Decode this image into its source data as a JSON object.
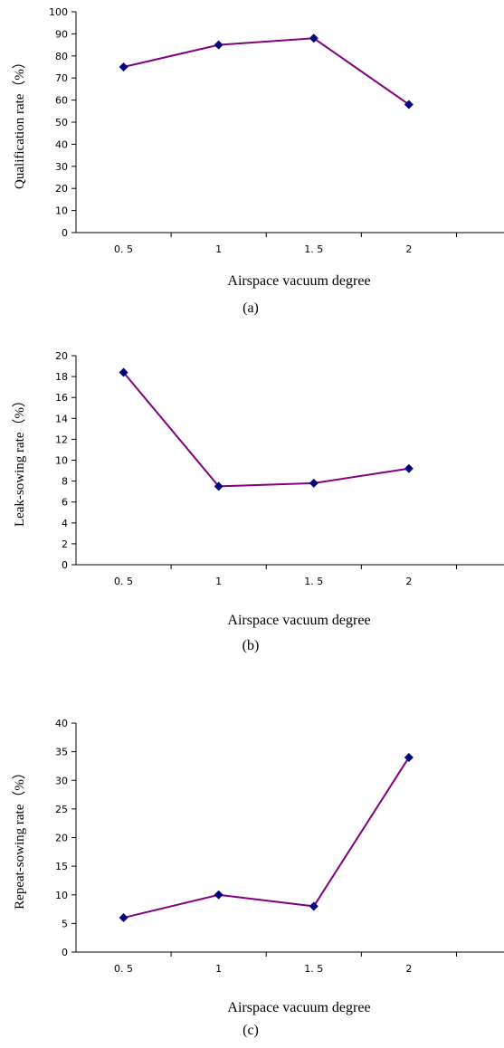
{
  "chart_data": [
    {
      "type": "line",
      "panel_label": "(a)",
      "categories": [
        "0. 5",
        "1",
        "1. 5",
        "2"
      ],
      "series": [
        {
          "values": [
            75,
            85,
            88,
            58
          ],
          "color": "#800080",
          "marker_color": "#000080"
        }
      ],
      "xlabel": "Airspace vacuum degree",
      "ylabel": "Qualification rate（%）",
      "ylim": [
        0,
        100
      ],
      "yticks": [
        0,
        10,
        20,
        30,
        40,
        50,
        60,
        70,
        80,
        90,
        100
      ],
      "grid": false
    },
    {
      "type": "line",
      "panel_label": "(b)",
      "categories": [
        "0. 5",
        "1",
        "1. 5",
        "2"
      ],
      "series": [
        {
          "values": [
            18.4,
            7.5,
            7.8,
            9.2
          ],
          "color": "#800080",
          "marker_color": "#000080"
        }
      ],
      "xlabel": "Airspace vacuum degree",
      "ylabel": "Leak-sowing rate（%）",
      "ylim": [
        0,
        20
      ],
      "yticks": [
        0,
        2,
        4,
        6,
        8,
        10,
        12,
        14,
        16,
        18,
        20
      ],
      "grid": false
    },
    {
      "type": "line",
      "panel_label": "(c)",
      "categories": [
        "0. 5",
        "1",
        "1. 5",
        "2"
      ],
      "series": [
        {
          "values": [
            6,
            10,
            8,
            34
          ],
          "color": "#800080",
          "marker_color": "#000080"
        }
      ],
      "xlabel": "Airspace vacuum degree",
      "ylabel": "Repeat-sowing rate（%）",
      "ylim": [
        0,
        40
      ],
      "yticks": [
        0,
        5,
        10,
        15,
        20,
        25,
        30,
        35,
        40
      ],
      "grid": false
    }
  ]
}
